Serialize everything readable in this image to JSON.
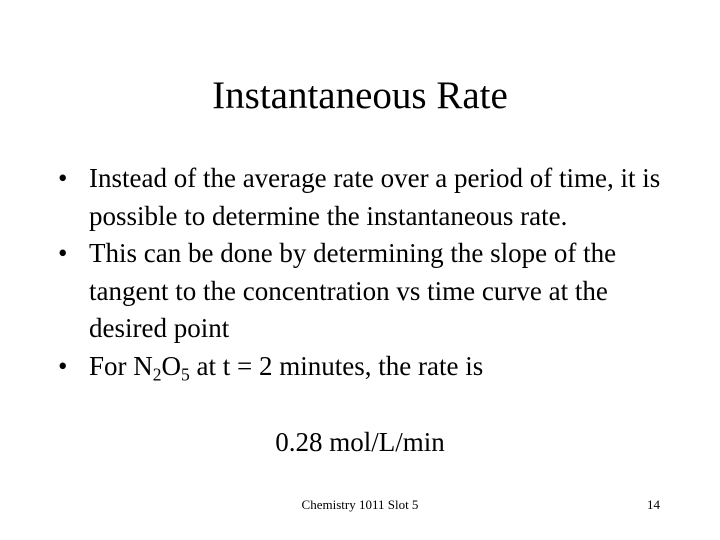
{
  "slide": {
    "title": "Instantaneous Rate",
    "bullets": [
      "Instead of the average rate over a period of time, it is possible to determine the instantaneous rate.",
      "This can be done by determining the slope of the tangent to the concentration vs time curve at the desired point"
    ],
    "bullet3": {
      "prefix": "For N",
      "sub1": "2",
      "mid": "O",
      "sub2": "5",
      "suffix": " at t = 2 minutes, the rate is"
    },
    "rate_value": "0.28 mol/L/min",
    "footer": "Chemistry 1011 Slot 5",
    "slide_number": "14"
  }
}
